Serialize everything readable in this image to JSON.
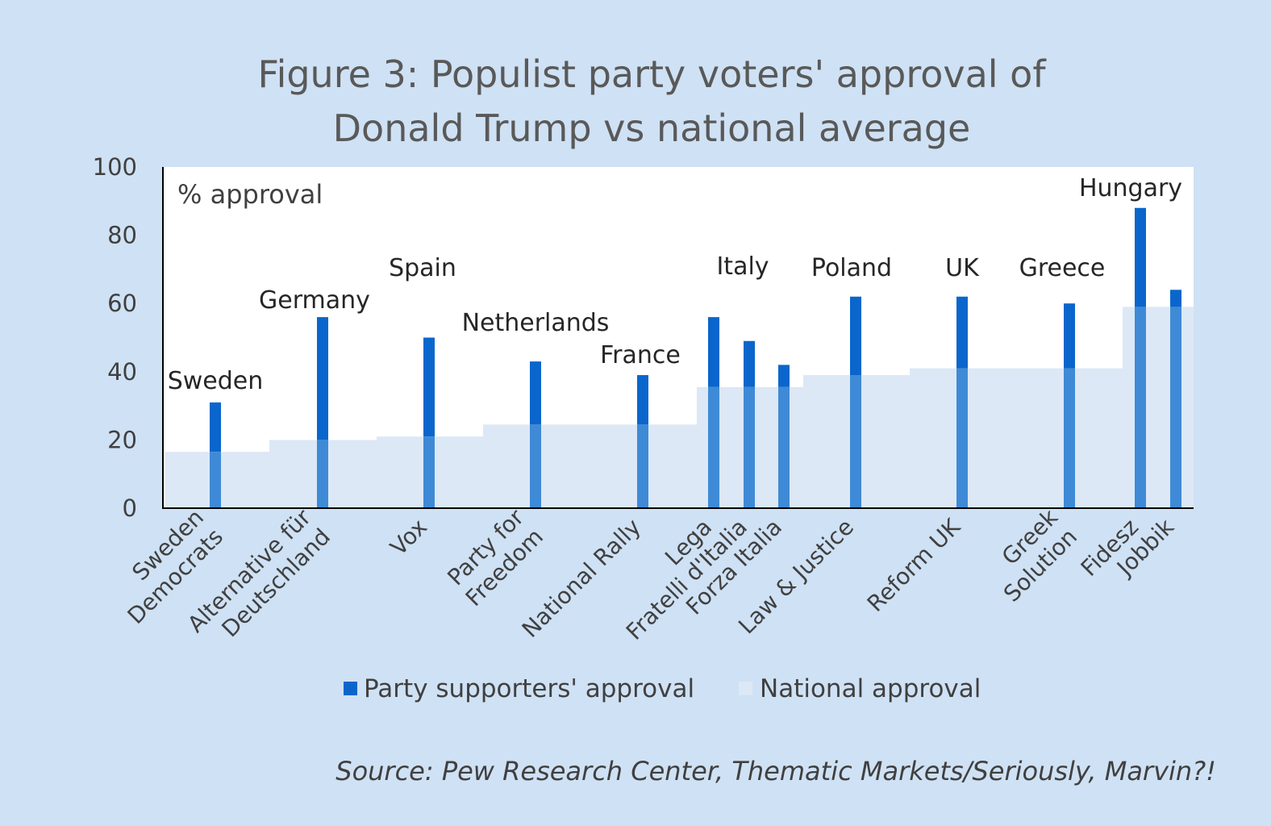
{
  "chart_data": {
    "type": "bar",
    "title_lines": [
      "Figure 3: Populist party voters' approval of",
      "Donald Trump vs national average"
    ],
    "ylabel": "% approval",
    "ylim": [
      0,
      100
    ],
    "yticks": [
      "0",
      "20",
      "40",
      "60",
      "80",
      "100"
    ],
    "categories": [
      [
        "Sweden",
        "Democrats"
      ],
      [
        "Alternative für",
        "Deutschland"
      ],
      [
        "Vox"
      ],
      [
        "Party for",
        "Freedom"
      ],
      [
        "National Rally"
      ],
      [
        "Lega"
      ],
      [
        "Fratelli d'Italia"
      ],
      [
        "Forza Italia"
      ],
      [
        "Law & Justice"
      ],
      [
        "Reform UK"
      ],
      [
        "Greek",
        "Solution"
      ],
      [
        "Fidesz"
      ],
      [
        "Jobbik"
      ]
    ],
    "country_labels": [
      "Sweden",
      "Germany",
      "Spain",
      "Netherlands",
      "France",
      "Italy",
      "Poland",
      "UK",
      "Greece",
      "Hungary"
    ],
    "series": [
      {
        "name": "Party supporters' approval",
        "color": "#0a66cc",
        "values": [
          31,
          56,
          50,
          43,
          39,
          56,
          49,
          42,
          62,
          62,
          60,
          88,
          64
        ]
      },
      {
        "name": "National approval",
        "color": "#dce8f6",
        "values": [
          16.5,
          20,
          21,
          24.5,
          24.5,
          35.5,
          35.5,
          35.5,
          39,
          41,
          41,
          59,
          59
        ]
      }
    ],
    "legend_position": "bottom",
    "grid": false
  },
  "source": "Source: Pew Research Center, Thematic Markets/Seriously, Marvin?!"
}
